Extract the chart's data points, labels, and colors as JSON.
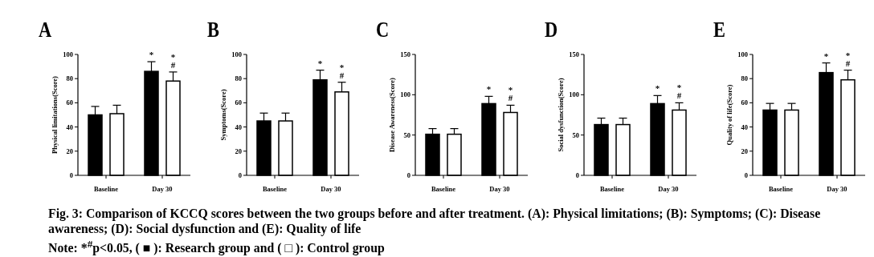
{
  "chart_data": [
    {
      "type": "bar",
      "title": "A",
      "ylabel": "Physical limitations(Score)",
      "categories": [
        "Baseline",
        "Day 30"
      ],
      "ylim": [
        0,
        100
      ],
      "yticks": [
        0,
        20,
        40,
        60,
        80,
        100
      ],
      "series": [
        {
          "color": "#000000",
          "values": [
            50,
            86
          ],
          "errors": [
            [
              50,
              57
            ],
            [
              86,
              94
            ]
          ],
          "value_labels": [
            null,
            "*"
          ]
        },
        {
          "color": "#ffffff",
          "values": [
            51,
            78
          ],
          "errors": [
            [
              51,
              58
            ],
            [
              78,
              85.5
            ]
          ],
          "value_labels": [
            null,
            "*#"
          ]
        }
      ],
      "annotations": [
        "Fig. 3: Comparison of KCCQ scores between the two groups before and after treatment. (A): Physical limitations; (B): Symptoms; (C): Disease awareness; (D): Social dysfunction and (E): Quality of life",
        "Note: *$^{#}$p<0.05, ( ■ ): Research group and ( □ ): Control group"
      ]
    },
    {
      "type": "bar",
      "title": "B",
      "ylabel": "Symptoms(Score)",
      "categories": [
        "Baseline",
        "Day 30"
      ],
      "ylim": [
        0,
        100
      ],
      "yticks": [
        0,
        20,
        40,
        60,
        80,
        100
      ],
      "series": [
        {
          "color": "#000000",
          "values": [
            45,
            79
          ],
          "errors": [
            [
              45,
              51.5
            ],
            [
              79,
              87
            ]
          ],
          "value_labels": [
            null,
            "*"
          ]
        },
        {
          "color": "#ffffff",
          "values": [
            45,
            69
          ],
          "errors": [
            [
              45,
              51.5
            ],
            [
              69,
              77
            ]
          ],
          "value_labels": [
            null,
            "*#"
          ]
        }
      ]
    },
    {
      "type": "bar",
      "title": "C",
      "ylabel": "Disease Awareness(Score)",
      "categories": [
        "Baseline",
        "Day 30"
      ],
      "ylim": [
        0,
        150
      ],
      "yticks": [
        0,
        50,
        100,
        150
      ],
      "series": [
        {
          "color": "#000000",
          "values": [
            51,
            89
          ],
          "errors": [
            [
              51,
              58
            ],
            [
              89,
              98
            ]
          ],
          "value_labels": [
            null,
            "*"
          ]
        },
        {
          "color": "#ffffff",
          "values": [
            51,
            78
          ],
          "errors": [
            [
              51,
              58
            ],
            [
              78,
              87
            ]
          ],
          "value_labels": [
            null,
            "*#"
          ]
        }
      ]
    },
    {
      "type": "bar",
      "title": "D",
      "ylabel": "Social dysfunction(Score)",
      "categories": [
        "Baseline",
        "Day 30"
      ],
      "ylim": [
        0,
        150
      ],
      "yticks": [
        0,
        50,
        100,
        150
      ],
      "series": [
        {
          "color": "#000000",
          "values": [
            63,
            89
          ],
          "errors": [
            [
              63,
              71
            ],
            [
              89,
              99
            ]
          ],
          "value_labels": [
            null,
            "*"
          ]
        },
        {
          "color": "#ffffff",
          "values": [
            63,
            81
          ],
          "errors": [
            [
              63,
              71
            ],
            [
              81,
              90
            ]
          ],
          "value_labels": [
            null,
            "*#"
          ]
        }
      ]
    },
    {
      "type": "bar",
      "title": "E",
      "ylabel": "Quality of life(Score)",
      "categories": [
        "Baseline",
        "Day 30"
      ],
      "ylim": [
        0,
        100
      ],
      "yticks": [
        0,
        20,
        40,
        60,
        80,
        100
      ],
      "series": [
        {
          "color": "#000000",
          "values": [
            54,
            85
          ],
          "errors": [
            [
              54,
              59.5
            ],
            [
              85,
              93
            ]
          ],
          "value_labels": [
            null,
            "*"
          ]
        },
        {
          "color": "#ffffff",
          "values": [
            54,
            79
          ],
          "errors": [
            [
              54,
              59.5
            ],
            [
              79,
              87
            ]
          ],
          "value_labels": [
            null,
            "*#"
          ]
        }
      ]
    }
  ]
}
